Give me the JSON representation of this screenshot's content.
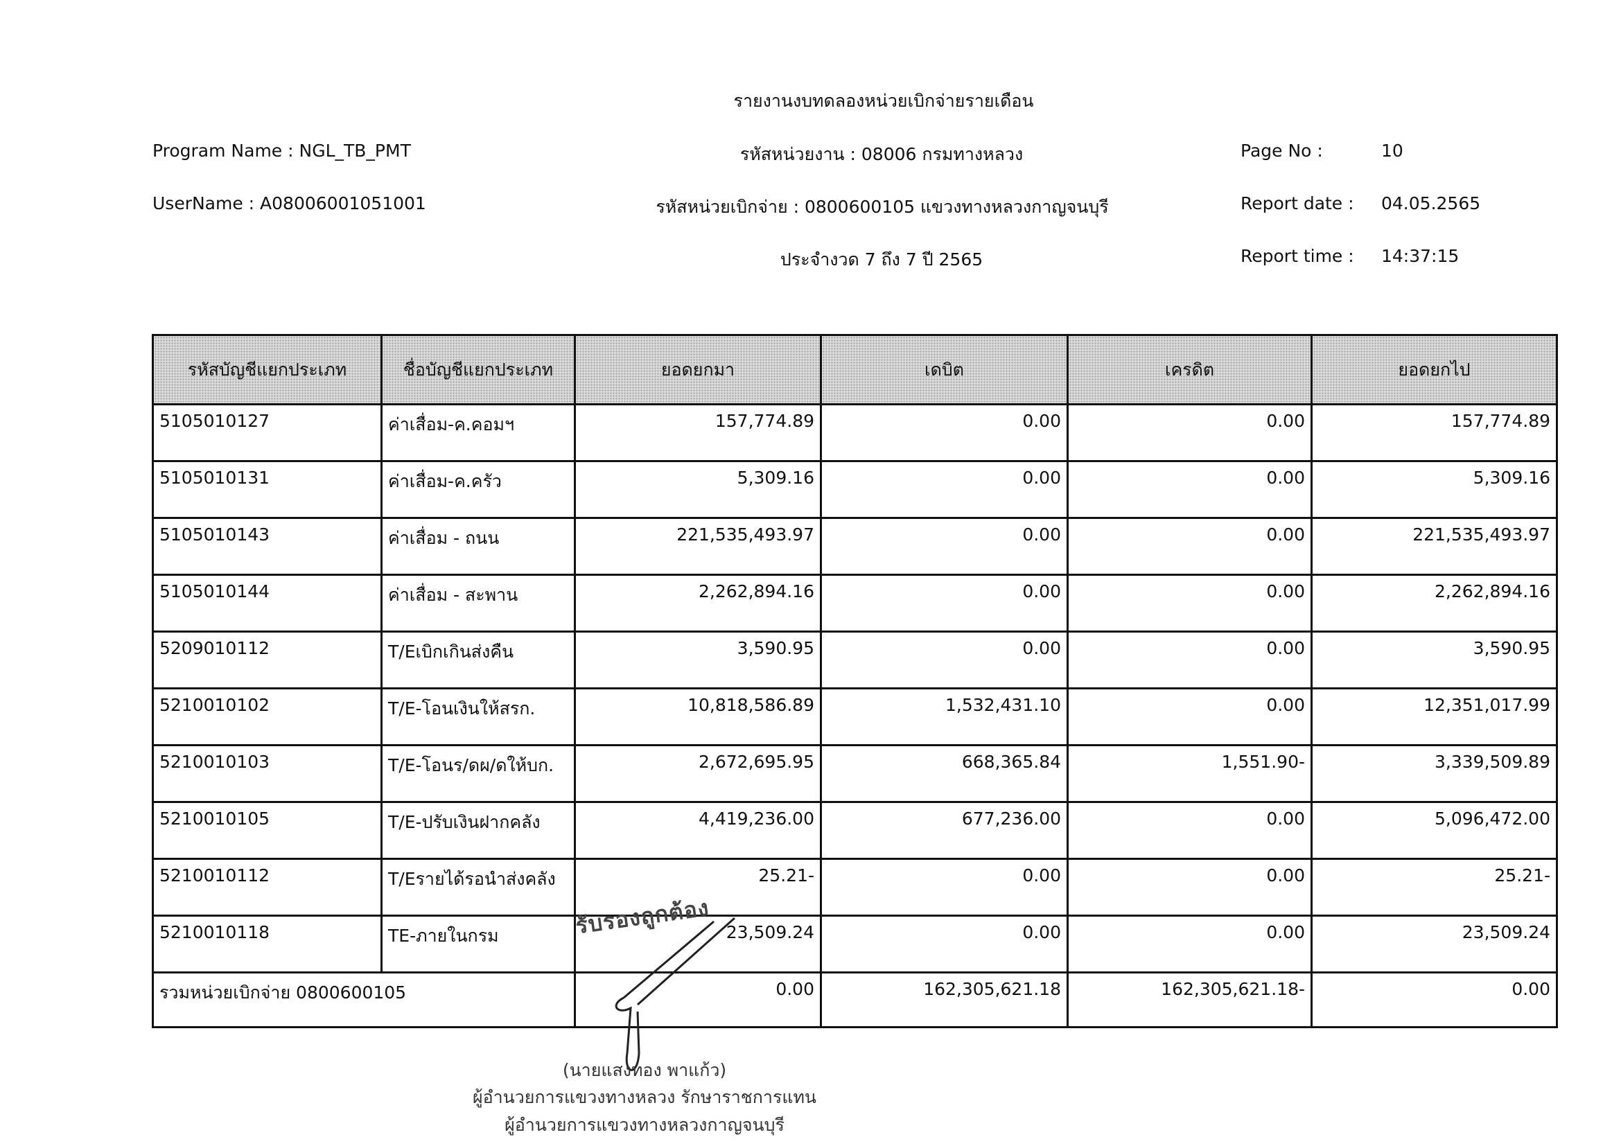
{
  "header": {
    "title": "รายงานงบทดลองหน่วยเบิกจ่ายรายเดือน",
    "program_name": "Program Name : NGL_TB_PMT",
    "user_name": "UserName : A08006001051001",
    "agency_code": "รหัสหน่วยงาน : 08006 กรมทางหลวง",
    "disbursing_unit": "รหัสหน่วยเบิกจ่าย : 0800600105 แขวงทางหลวงกาญจนบุรี",
    "period": "ประจำงวด 7 ถึง 7 ปี 2565",
    "page_no_label": "Page No :",
    "page_no": "10",
    "report_date_label": "Report date :",
    "report_date": "04.05.2565",
    "report_time_label": "Report time :",
    "report_time": "14:37:15"
  },
  "table": {
    "columns": [
      "รหัสบัญชีแยกประเภท",
      "ชื่อบัญชีแยกประเภท",
      "ยอดยกมา",
      "เดบิต",
      "เครดิต",
      "ยอดยกไป"
    ],
    "rows": [
      [
        "5105010127",
        "ค่าเสื่อม-ค.คอมฯ",
        "157,774.89",
        "0.00",
        "0.00",
        "157,774.89"
      ],
      [
        "5105010131",
        "ค่าเสื่อม-ค.ครัว",
        "5,309.16",
        "0.00",
        "0.00",
        "5,309.16"
      ],
      [
        "5105010143",
        "ค่าเสื่อม - ถนน",
        "221,535,493.97",
        "0.00",
        "0.00",
        "221,535,493.97"
      ],
      [
        "5105010144",
        "ค่าเสื่อม - สะพาน",
        "2,262,894.16",
        "0.00",
        "0.00",
        "2,262,894.16"
      ],
      [
        "5209010112",
        "T/Eเบิกเกินส่งคืน",
        "3,590.95",
        "0.00",
        "0.00",
        "3,590.95"
      ],
      [
        "5210010102",
        "T/E-โอนเงินให้สรก.",
        "10,818,586.89",
        "1,532,431.10",
        "0.00",
        "12,351,017.99"
      ],
      [
        "5210010103",
        "T/E-โอนร/ดผ/ดให้บก.",
        "2,672,695.95",
        "668,365.84",
        "1,551.90-",
        "3,339,509.89"
      ],
      [
        "5210010105",
        "T/E-ปรับเงินฝากคลัง",
        "4,419,236.00",
        "677,236.00",
        "0.00",
        "5,096,472.00"
      ],
      [
        "5210010112",
        "T/Eรายได้รอนำส่งคลัง",
        "25.21-",
        "0.00",
        "0.00",
        "25.21-"
      ],
      [
        "5210010118",
        "TE-ภายในกรม",
        "23,509.24",
        "0.00",
        "0.00",
        "23,509.24"
      ]
    ],
    "total": {
      "label": "รวมหน่วยเบิกจ่าย 0800600105",
      "values": [
        "0.00",
        "162,305,621.18",
        "162,305,621.18-",
        "0.00"
      ]
    }
  },
  "stamp": "รับรองถูกต้อง",
  "signature": {
    "name": "(นายแสงทอง  พาแก้ว)",
    "position_line1": "ผู้อำนวยการแขวงทางหลวง รักษาราชการแทน",
    "position_line2": "ผู้อำนวยการแขวงทางหลวงกาญจนบุรี"
  }
}
